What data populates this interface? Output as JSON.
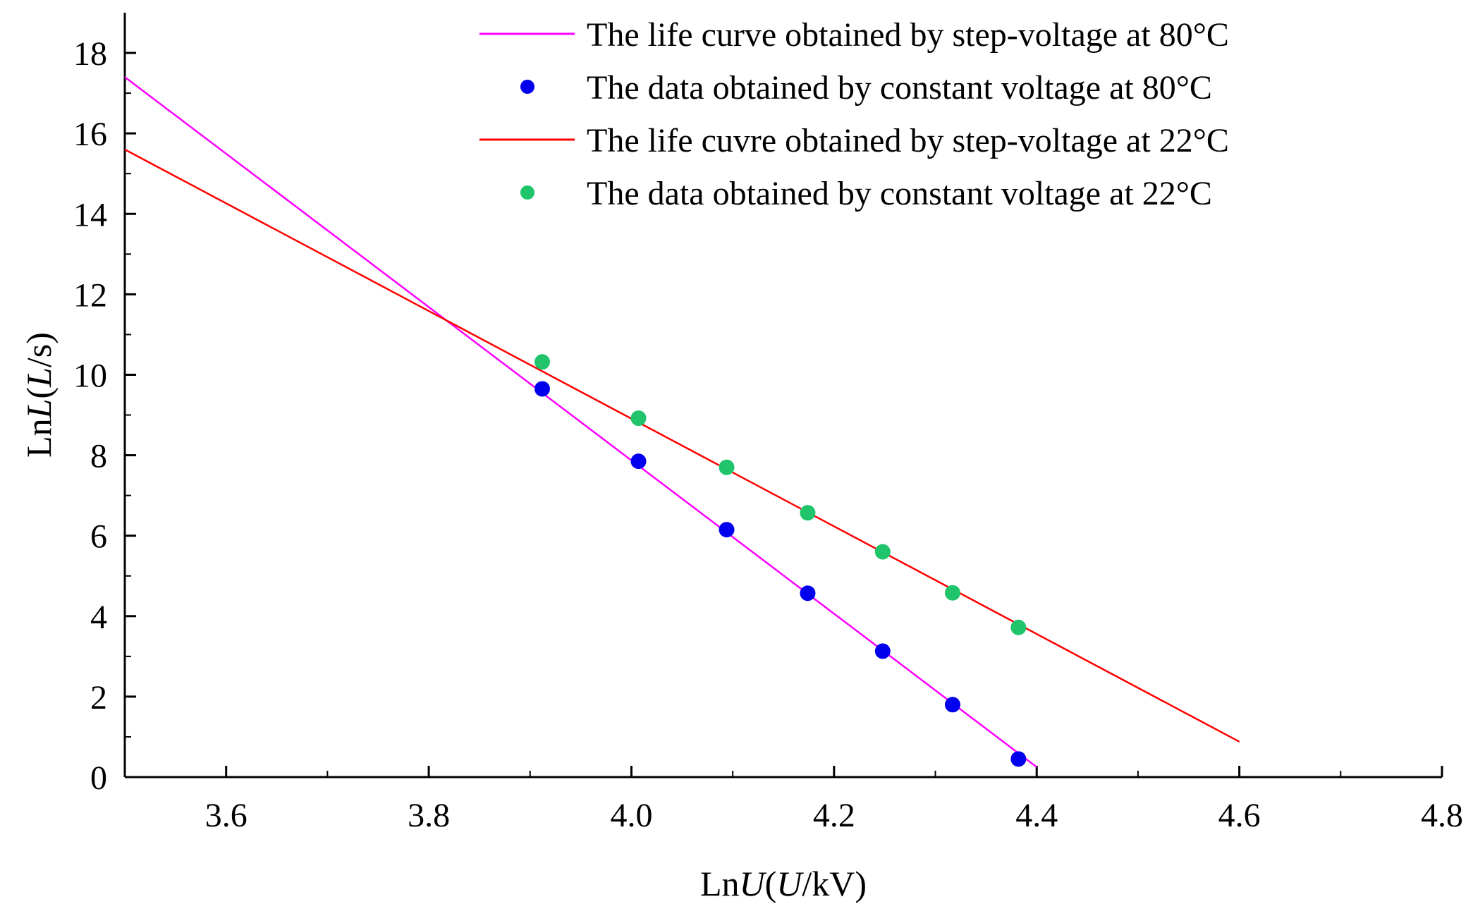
{
  "chart_data": {
    "type": "scatter",
    "xlabel": {
      "prefix": "Ln",
      "var": "U",
      "rest": "(",
      "var2": "U",
      "suffix": "/kV)"
    },
    "ylabel": {
      "prefix": "Ln",
      "var": "L",
      "rest": "(",
      "var2": "L",
      "suffix": "/s)"
    },
    "xlim": [
      3.5,
      4.8
    ],
    "ylim": [
      0,
      19
    ],
    "xticks": [
      3.6,
      3.8,
      4.0,
      4.2,
      4.4,
      4.6,
      4.8
    ],
    "xtick_labels": [
      "3.6",
      "3.8",
      "4.0",
      "4.2",
      "4.4",
      "4.6",
      "4.8"
    ],
    "yticks": [
      0,
      2,
      4,
      6,
      8,
      10,
      12,
      14,
      16,
      18
    ],
    "ytick_labels": [
      "0",
      "2",
      "4",
      "6",
      "8",
      "10",
      "12",
      "14",
      "16",
      "18"
    ],
    "grid": false,
    "legend_position": "top-right",
    "series": [
      {
        "name": "The life curve obtained by step-voltage at 80°C",
        "kind": "line",
        "color": "#ff00ff",
        "x": [
          3.5,
          4.4
        ],
        "y": [
          17.4,
          0.25
        ]
      },
      {
        "name": "The data obtained by constant voltage at 80°C",
        "kind": "scatter",
        "color": "#0000ee",
        "x": [
          3.912,
          4.007,
          4.094,
          4.174,
          4.248,
          4.317,
          4.382
        ],
        "y": [
          9.65,
          7.85,
          6.15,
          4.57,
          3.13,
          1.8,
          0.45
        ]
      },
      {
        "name": "The life cuvre obtained by step-voltage at 22°C",
        "kind": "line",
        "color": "#ff0000",
        "x": [
          3.5,
          4.6
        ],
        "y": [
          15.6,
          0.88
        ]
      },
      {
        "name": "The data obtained by constant voltage at 22°C",
        "kind": "scatter",
        "color": "#1fc46b",
        "x": [
          3.912,
          4.007,
          4.094,
          4.174,
          4.248,
          4.317,
          4.382
        ],
        "y": [
          10.32,
          8.92,
          7.7,
          6.57,
          5.6,
          4.58,
          3.72
        ]
      }
    ]
  }
}
